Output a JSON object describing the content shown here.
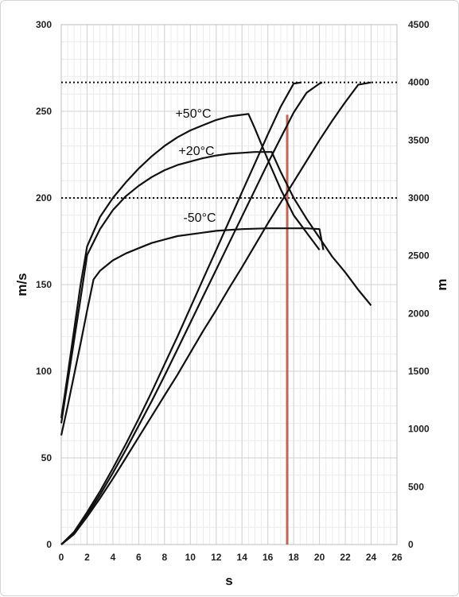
{
  "chart_data": {
    "type": "line",
    "xlabel": "s",
    "ylabel": "m/s",
    "y2label": "m",
    "xlim": [
      0,
      26
    ],
    "ylim": [
      0,
      300
    ],
    "y2lim": [
      0,
      4500
    ],
    "x_ticks": [
      0,
      2,
      4,
      6,
      8,
      10,
      12,
      14,
      16,
      18,
      20,
      22,
      24,
      26
    ],
    "y_ticks": [
      0,
      50,
      100,
      150,
      200,
      250,
      300
    ],
    "y2_ticks": [
      0,
      500,
      1000,
      1500,
      2000,
      2500,
      3000,
      3500,
      4000,
      4500
    ],
    "grid": true,
    "annotations": [
      "+50°C",
      "+20°C",
      "-50°C"
    ],
    "reference_lines": {
      "horizontal_dotted_ms": [
        200,
        266.67
      ],
      "vertical_marker_s": 17.5,
      "vertical_marker_ms_range": [
        0,
        248
      ],
      "vertical_marker_color": "#c0655a"
    },
    "series": [
      {
        "name": "+50°C",
        "axis": "left",
        "x": [
          0,
          0.5,
          1,
          1.5,
          2,
          3,
          4,
          5,
          6,
          7,
          8,
          9,
          10,
          11,
          12,
          13,
          14,
          14.5,
          15,
          16,
          17,
          18,
          19,
          20
        ],
        "y": [
          73,
          98,
          124,
          150,
          172,
          189,
          200,
          209,
          217,
          224,
          230,
          235,
          239,
          242,
          245,
          247,
          248,
          248.5,
          240,
          222,
          205,
          190,
          180,
          170
        ]
      },
      {
        "name": "+20°C",
        "axis": "left",
        "x": [
          0,
          0.5,
          1,
          1.5,
          2,
          3,
          4,
          5,
          6,
          7,
          8,
          9,
          10,
          11,
          12,
          13,
          14,
          15,
          16,
          16.3,
          17,
          18,
          19,
          20,
          21,
          22,
          23,
          24
        ],
        "y": [
          70,
          94,
          118,
          142,
          167,
          182,
          193,
          201,
          207,
          212,
          216,
          219,
          221,
          223,
          224.5,
          225.5,
          226,
          226.5,
          226.5,
          226.5,
          215,
          200,
          188,
          177,
          166,
          157,
          147,
          138
        ]
      },
      {
        "name": "-50°C",
        "axis": "left",
        "x": [
          0,
          0.5,
          1,
          1.5,
          2,
          2.5,
          3,
          4,
          5,
          6,
          7,
          8,
          9,
          10,
          12,
          14,
          16,
          18,
          19,
          20,
          20.3
        ],
        "y": [
          63,
          80,
          98,
          116,
          135,
          153,
          158,
          164,
          168,
          171,
          174,
          176,
          178,
          179,
          181,
          182,
          182.5,
          182.5,
          182.5,
          182,
          170
        ]
      },
      {
        "axis": "right",
        "x": [
          0,
          1,
          2,
          3,
          4,
          5,
          6,
          7,
          8,
          9,
          10,
          11,
          12,
          13,
          14,
          15,
          16,
          17,
          18,
          18.6
        ],
        "y": [
          0,
          110,
          280,
          460,
          660,
          870,
          1090,
          1320,
          1560,
          1800,
          2050,
          2300,
          2550,
          2800,
          3050,
          3300,
          3550,
          3790,
          3990,
          4000
        ]
      },
      {
        "axis": "right",
        "x": [
          0,
          1,
          2,
          3,
          4,
          5,
          6,
          7,
          8,
          9,
          10,
          11,
          12,
          13,
          14,
          15,
          16,
          17,
          18,
          19,
          20,
          20.2
        ],
        "y": [
          0,
          100,
          260,
          430,
          620,
          820,
          1030,
          1240,
          1460,
          1690,
          1920,
          2150,
          2380,
          2610,
          2840,
          3070,
          3300,
          3520,
          3740,
          3910,
          3990,
          4000
        ]
      },
      {
        "axis": "right",
        "x": [
          0,
          1,
          2,
          3,
          4,
          5,
          6,
          7,
          8,
          9,
          10,
          11,
          12,
          13,
          14,
          15,
          16,
          17,
          18,
          19,
          20,
          21,
          22,
          23,
          24
        ],
        "y": [
          0,
          90,
          240,
          400,
          570,
          750,
          930,
          1110,
          1290,
          1470,
          1660,
          1850,
          2030,
          2220,
          2400,
          2590,
          2780,
          2960,
          3140,
          3320,
          3500,
          3670,
          3830,
          3980,
          4000
        ]
      }
    ]
  }
}
